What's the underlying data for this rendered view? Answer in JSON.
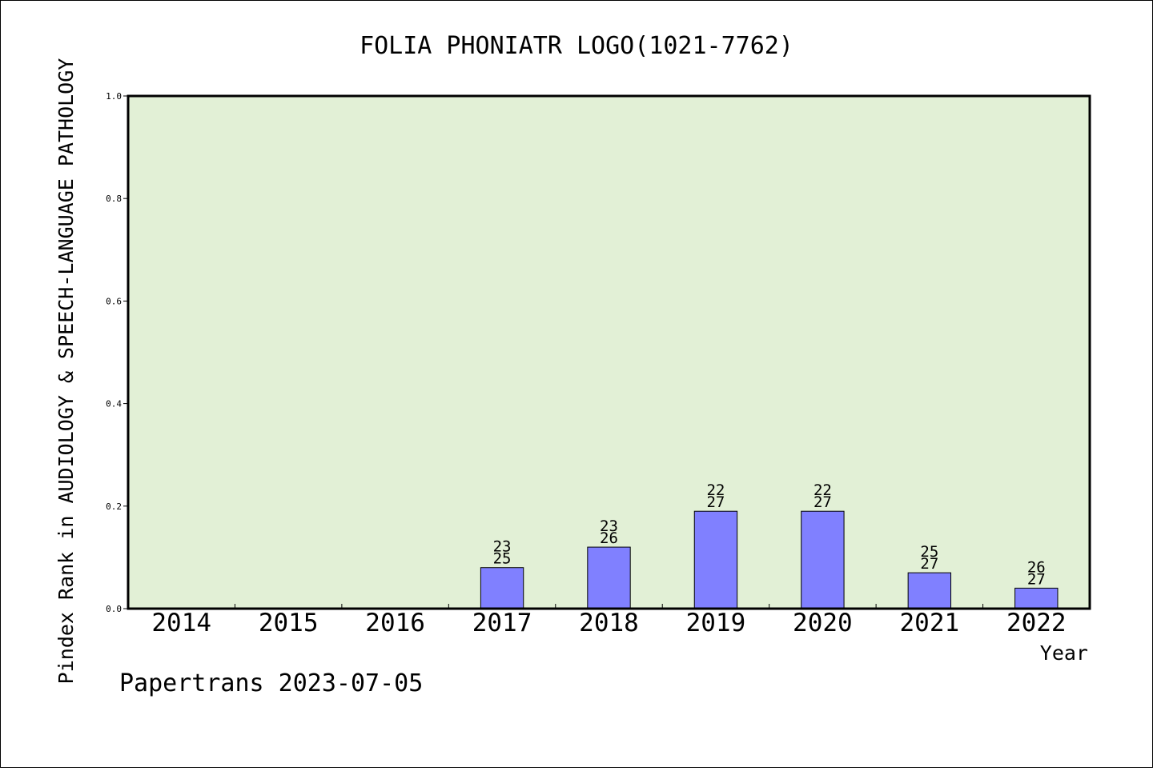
{
  "chart_data": {
    "type": "bar",
    "title": "FOLIA PHONIATR LOGO(1021-7762)",
    "ylabel": "Pindex Rank in AUDIOLOGY & SPEECH-LANGUAGE PATHOLOGY",
    "xlabel": "Year",
    "ylim": [
      0,
      1.0
    ],
    "yticks": [
      "0.0",
      "0.2",
      "0.4",
      "0.6",
      "0.8",
      "1.0"
    ],
    "categories": [
      "2014",
      "2015",
      "2016",
      "2017",
      "2018",
      "2019",
      "2020",
      "2021",
      "2022"
    ],
    "values": [
      0,
      0,
      0,
      0.08,
      0.12,
      0.19,
      0.19,
      0.07,
      0.04
    ],
    "bar_labels": [
      null,
      null,
      null,
      {
        "rank": "23",
        "total": "25"
      },
      {
        "rank": "23",
        "total": "26"
      },
      {
        "rank": "22",
        "total": "27"
      },
      {
        "rank": "22",
        "total": "27"
      },
      {
        "rank": "25",
        "total": "27"
      },
      {
        "rank": "26",
        "total": "27"
      }
    ],
    "grid": false,
    "colors": {
      "plot_background": "#e2f0d6",
      "bar": "#8080ff",
      "bar_edge": "#000000"
    }
  },
  "footer": "Papertrans 2023-07-05"
}
